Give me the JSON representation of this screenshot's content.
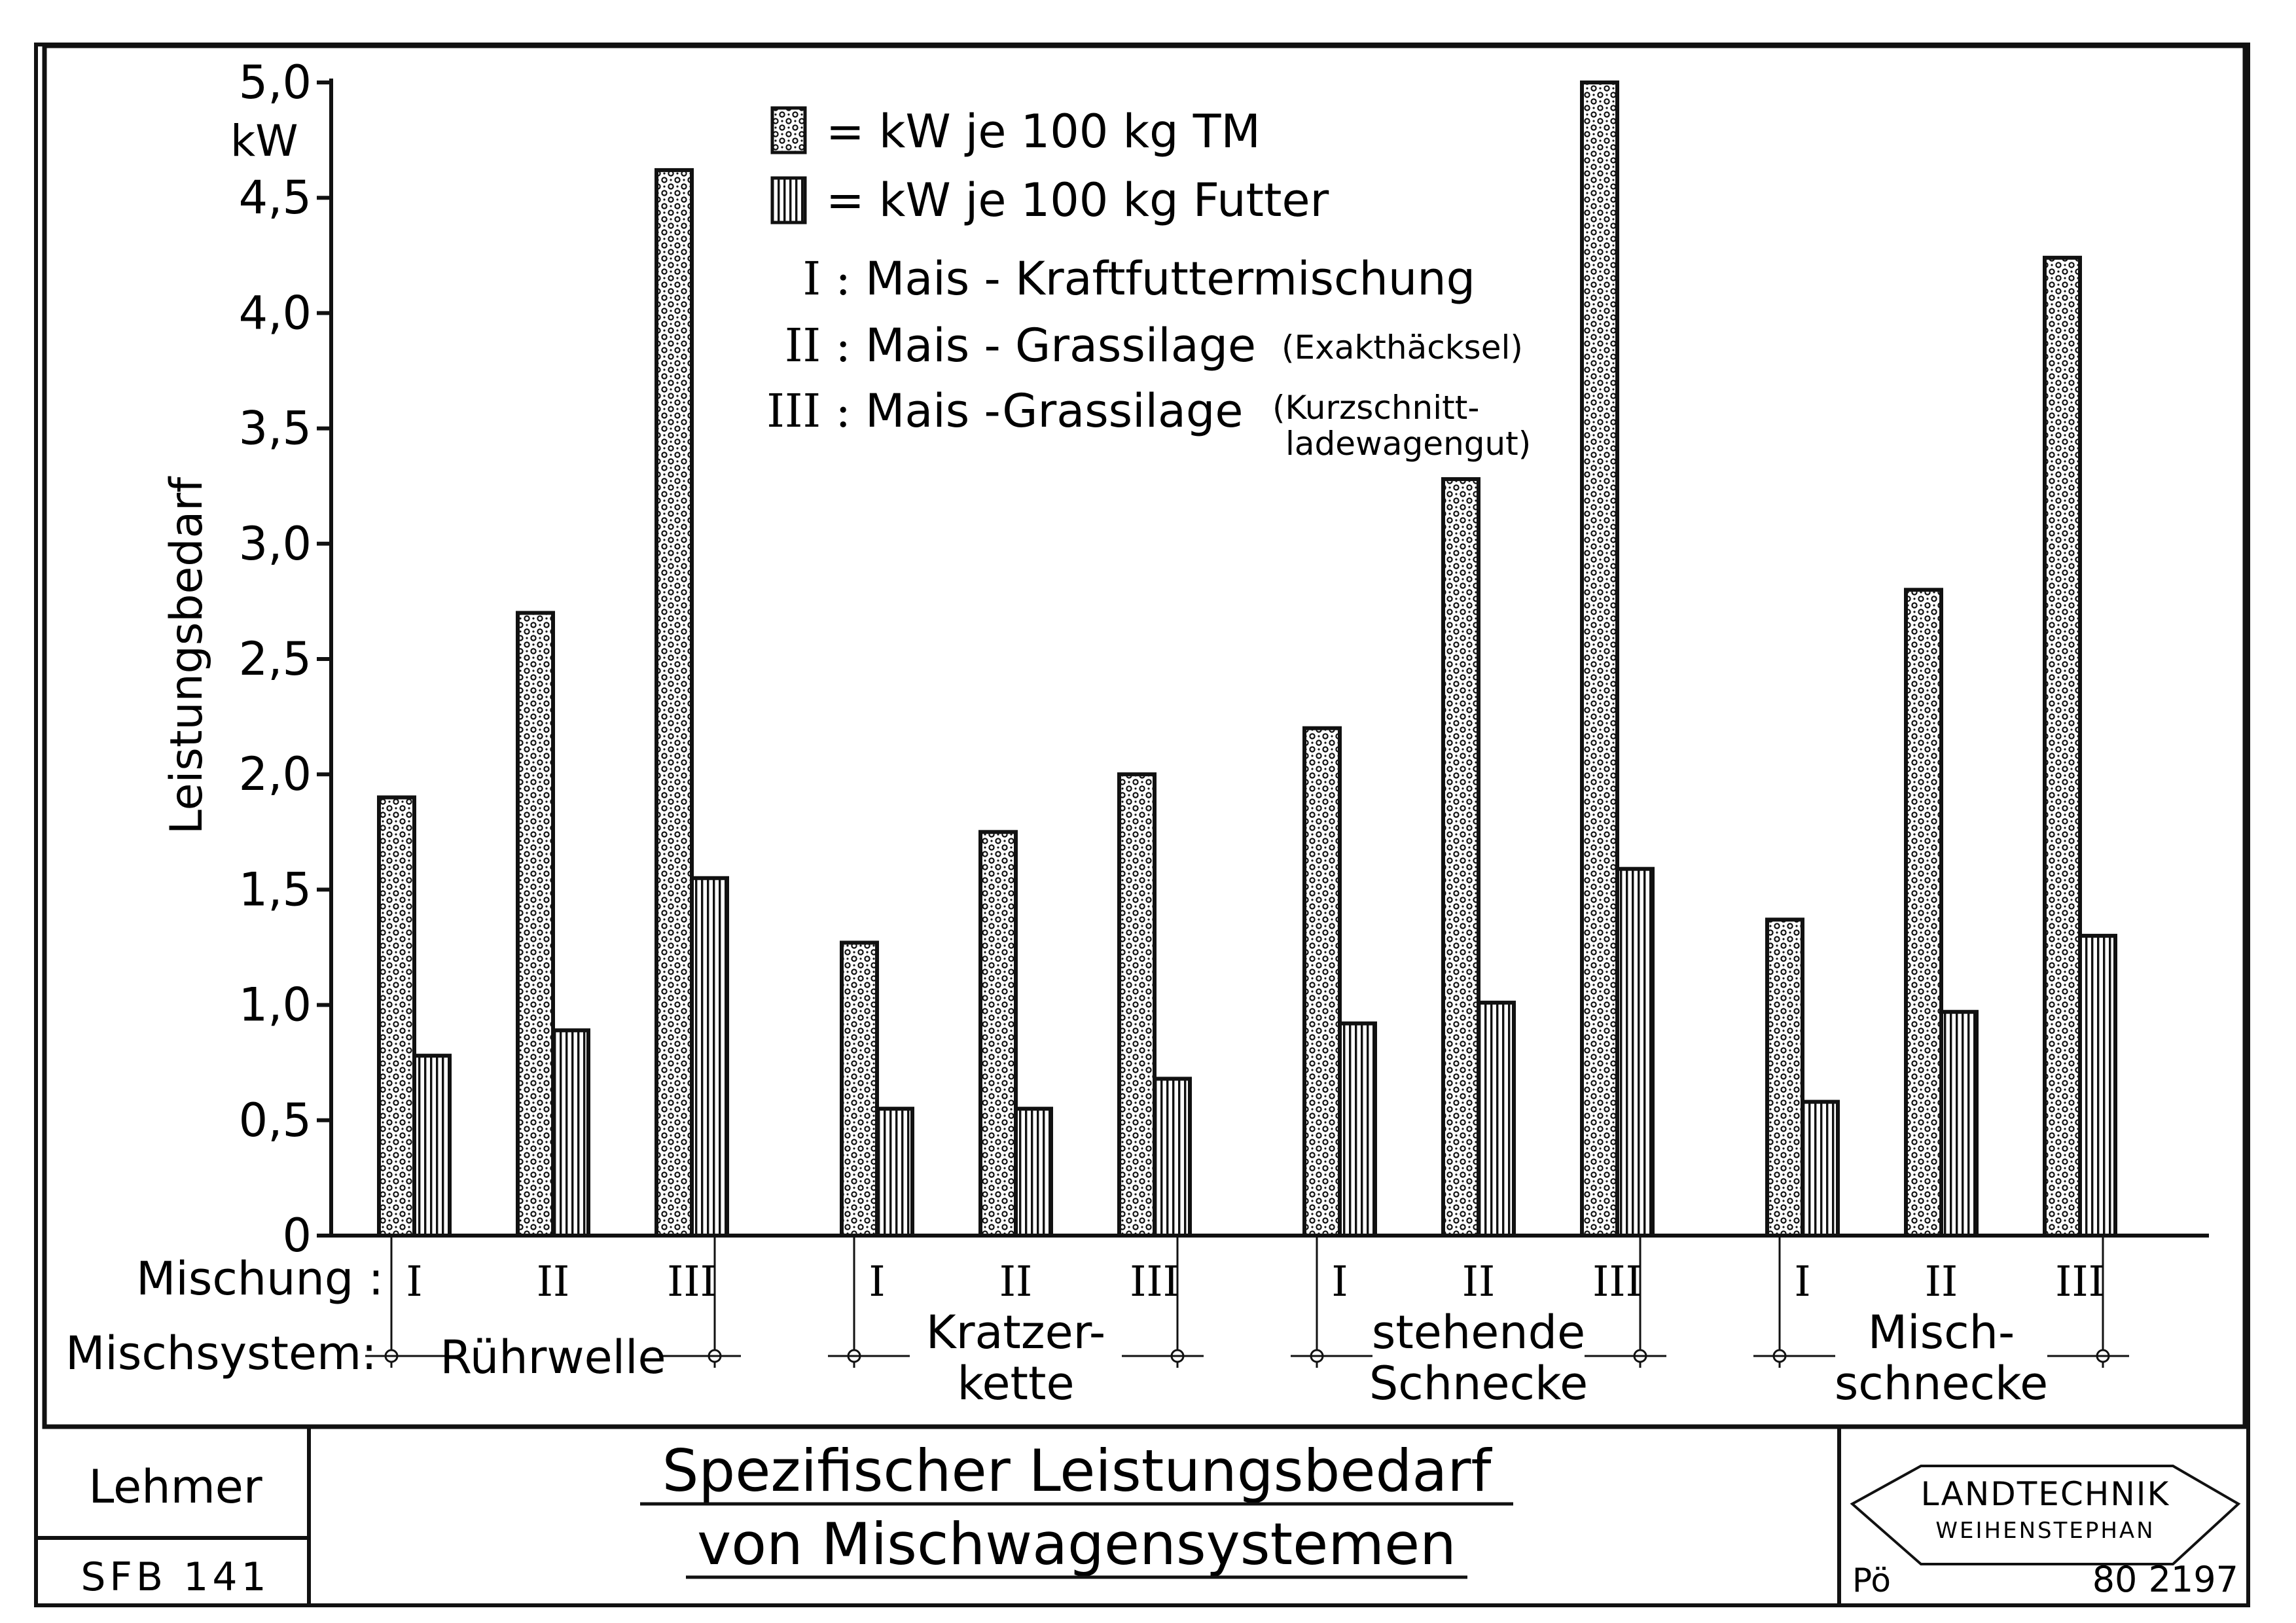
{
  "chart_data": {
    "type": "bar",
    "ylabel": "Leistungsbedarf",
    "yunit": "kW",
    "ylim": [
      0,
      5.0
    ],
    "yticks": [
      0,
      0.5,
      1.0,
      1.5,
      2.0,
      2.5,
      3.0,
      3.5,
      4.0,
      4.5,
      5.0
    ],
    "ytick_labels": [
      "0",
      "0,5",
      "1,0",
      "1,5",
      "2,0",
      "2,5",
      "3,0",
      "3,5",
      "4,0",
      "4,5",
      "5,0"
    ],
    "row_label_mischung": "Mischung :",
    "row_label_mischsystem": "Mischsystem:",
    "groups": [
      {
        "name_lines": [
          "Rührwelle"
        ]
      },
      {
        "name_lines": [
          "Kratzer-",
          "kette"
        ]
      },
      {
        "name_lines": [
          "stehende",
          "Schnecke"
        ]
      },
      {
        "name_lines": [
          "Misch-",
          "schnecke"
        ]
      }
    ],
    "mixtures": [
      "I",
      "II",
      "III"
    ],
    "series": [
      {
        "name": "= kW je 100 kg TM",
        "pattern": "dots",
        "values": [
          1.9,
          2.7,
          4.62,
          1.27,
          1.75,
          2.0,
          2.2,
          3.28,
          5.0,
          1.37,
          2.8,
          4.24
        ]
      },
      {
        "name": "= kW je 100 kg Futter",
        "pattern": "stripes",
        "values": [
          0.78,
          0.89,
          1.55,
          0.55,
          0.55,
          0.68,
          0.92,
          1.01,
          1.59,
          0.58,
          0.97,
          1.3
        ]
      }
    ],
    "legend_notes": [
      {
        "key": "I :",
        "text": "Mais - Kraftfuttermischung",
        "extra": []
      },
      {
        "key": "II :",
        "text": "Mais - Grassilage",
        "extra": [
          "(Exakthäcksel)"
        ]
      },
      {
        "key": "III :",
        "text": "Mais -Grassilage",
        "extra": [
          "(Kurzschnitt-",
          "ladewagengut)"
        ]
      }
    ]
  },
  "footer": {
    "author": "Lehmer",
    "project": "SFB 141",
    "title_line1": "Spezifischer Leistungsbedarf",
    "title_line2": "von Mischwagensystemen",
    "logo_line1": "LANDTECHNIK",
    "logo_line2": "WEIHENSTEPHAN",
    "initials": "Pö",
    "number": "80 2197"
  }
}
